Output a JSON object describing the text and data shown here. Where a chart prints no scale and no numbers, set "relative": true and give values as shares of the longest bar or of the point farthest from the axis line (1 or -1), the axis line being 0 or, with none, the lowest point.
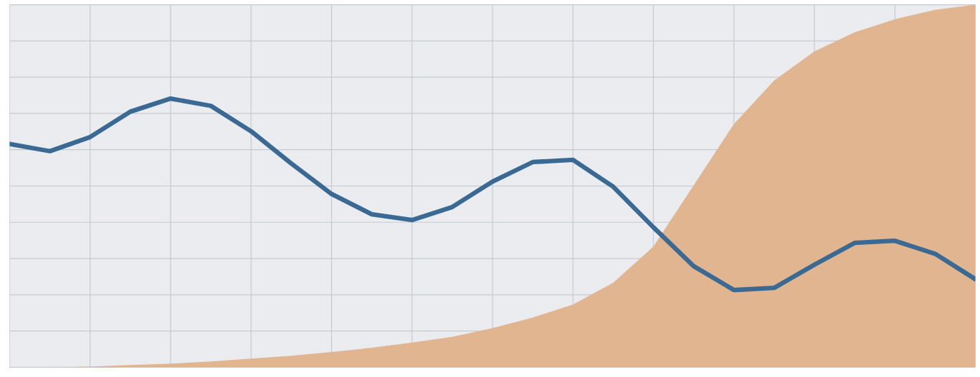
{
  "chart_data": {
    "type": "line",
    "relative": true,
    "grid": true,
    "categories": [
      null,
      null,
      null,
      null,
      null,
      null,
      null,
      null,
      null,
      null,
      null,
      null,
      null,
      null,
      null,
      null,
      null,
      null,
      null,
      null,
      null,
      null,
      null,
      null,
      null
    ],
    "series": [
      {
        "type": "area",
        "color": "#e0b590",
        "values": [
          0,
          0,
          0.002,
          0.006,
          0.01,
          0.016,
          0.024,
          0.032,
          0.042,
          0.054,
          0.068,
          0.084,
          0.108,
          0.137,
          0.173,
          0.233,
          0.333,
          0.502,
          0.671,
          0.791,
          0.871,
          0.924,
          0.96,
          0.986,
          1.0
        ]
      },
      {
        "color": "#3a6a93",
        "values": [
          0.616,
          0.596,
          0.635,
          0.705,
          0.741,
          0.721,
          0.651,
          0.562,
          0.478,
          0.422,
          0.406,
          0.442,
          0.512,
          0.566,
          0.572,
          0.498,
          0.386,
          0.279,
          0.213,
          0.219,
          0.283,
          0.343,
          0.349,
          0.313,
          0.243
        ]
      }
    ]
  }
}
